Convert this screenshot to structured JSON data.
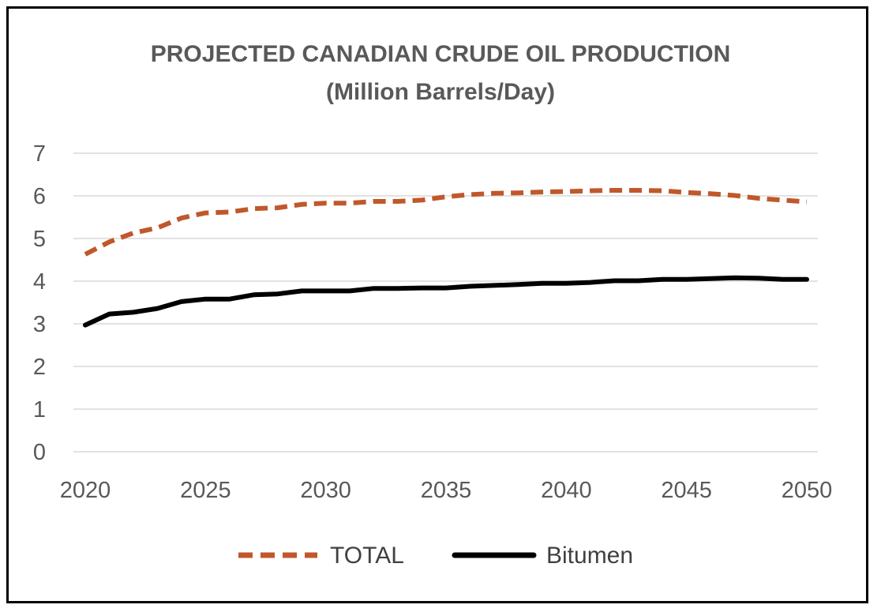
{
  "chart_data": {
    "type": "line",
    "title": "PROJECTED CANADIAN CRUDE OIL PRODUCTION",
    "subtitle": "(Million Barrels/Day)",
    "xlabel": "",
    "ylabel": "",
    "x": [
      2020,
      2021,
      2022,
      2023,
      2024,
      2025,
      2026,
      2027,
      2028,
      2029,
      2030,
      2031,
      2032,
      2033,
      2034,
      2035,
      2036,
      2037,
      2038,
      2039,
      2040,
      2041,
      2042,
      2043,
      2044,
      2045,
      2046,
      2047,
      2048,
      2049,
      2050
    ],
    "xticks": [
      "2020",
      "2025",
      "2030",
      "2035",
      "2040",
      "2045",
      "2050"
    ],
    "yticks": [
      "0",
      "1",
      "2",
      "3",
      "4",
      "5",
      "6",
      "7"
    ],
    "xlim": [
      2020,
      2050
    ],
    "ylim": [
      0,
      7
    ],
    "grid": true,
    "legend_position": "bottom",
    "series": [
      {
        "name": "TOTAL",
        "color": "#C0582B",
        "style": "dashed",
        "values": [
          4.63,
          4.92,
          5.13,
          5.25,
          5.48,
          5.6,
          5.62,
          5.7,
          5.72,
          5.8,
          5.83,
          5.83,
          5.87,
          5.87,
          5.9,
          5.98,
          6.03,
          6.06,
          6.07,
          6.09,
          6.1,
          6.12,
          6.13,
          6.13,
          6.12,
          6.08,
          6.05,
          6.01,
          5.94,
          5.9,
          5.86
        ]
      },
      {
        "name": "Bitumen",
        "color": "#000000",
        "style": "solid",
        "values": [
          2.97,
          3.23,
          3.27,
          3.36,
          3.52,
          3.58,
          3.58,
          3.68,
          3.7,
          3.77,
          3.77,
          3.77,
          3.83,
          3.83,
          3.84,
          3.84,
          3.88,
          3.9,
          3.92,
          3.95,
          3.95,
          3.97,
          4.01,
          4.01,
          4.04,
          4.04,
          4.06,
          4.08,
          4.07,
          4.04,
          4.04
        ]
      }
    ]
  }
}
